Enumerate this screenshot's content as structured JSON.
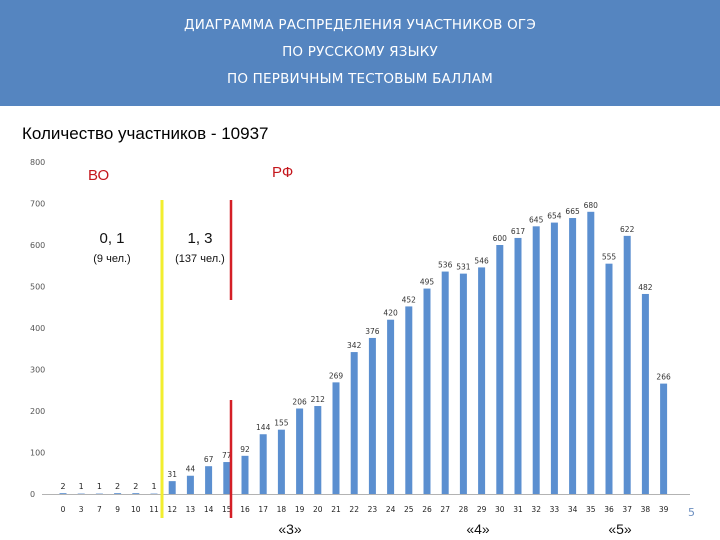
{
  "header": {
    "lines": [
      "ДИАГРАММА РАСПРЕДЕЛЕНИЯ УЧАСТНИКОВ ОГЭ",
      "ПО РУССКОМУ ЯЗЫКУ",
      "ПО ПЕРВИЧНЫМ ТЕСТОВЫМ БАЛЛАМ"
    ]
  },
  "participants_label": "Количество участников - 10937",
  "slide_number": "5",
  "annotations": {
    "vo_label": "ВО",
    "rf_label": "РФ",
    "vo_percent": "0, 1",
    "vo_people": "(9 чел.)",
    "rf_percent": "1, 3",
    "rf_people": "(137 чел.)"
  },
  "grade_labels": [
    "«3»",
    "«4»",
    "«5»"
  ],
  "colors": {
    "banner": "#5585c0",
    "bar": "#5b8fd0",
    "yellow_line": "#f2ee2e",
    "red_line": "#d41f26"
  },
  "chart_data": {
    "type": "bar",
    "x": [
      0,
      3,
      7,
      9,
      10,
      11,
      12,
      13,
      14,
      15,
      16,
      17,
      18,
      19,
      20,
      21,
      22,
      23,
      24,
      25,
      26,
      27,
      28,
      29,
      30,
      31,
      32,
      33,
      34,
      35,
      36,
      37,
      38,
      39
    ],
    "values": [
      2,
      1,
      1,
      2,
      2,
      1,
      31,
      44,
      67,
      77,
      92,
      144,
      155,
      206,
      212,
      269,
      342,
      376,
      420,
      452,
      495,
      536,
      531,
      546,
      600,
      617,
      645,
      654,
      665,
      680,
      555,
      622,
      482,
      266
    ],
    "value_labels": [
      "2",
      "1",
      "1",
      "2",
      "2",
      "1",
      "31",
      "44",
      "67",
      "77",
      "92",
      "144",
      "155",
      "206",
      "212",
      "269",
      "342",
      "376",
      "420",
      "452",
      "495",
      "536",
      "531",
      "546",
      "600",
      "617",
      "645",
      "654",
      "665",
      "680",
      "555",
      "622",
      "482",
      "266"
    ],
    "x_tick_labels": [
      "0",
      "3",
      "7",
      "9",
      "10",
      "11",
      "12",
      "13",
      "14",
      "15",
      "16",
      "17",
      "18",
      "19",
      "20",
      "21",
      "22",
      "23",
      "24",
      "25",
      "26",
      "27",
      "28",
      "29",
      "30",
      "31",
      "32",
      "33",
      "34",
      "35",
      "36",
      "37",
      "38",
      "39"
    ],
    "y_ticks": [
      0,
      100,
      200,
      300,
      400,
      500,
      600,
      700,
      800
    ],
    "ylim": [
      0,
      800
    ],
    "grid": false,
    "legend": null
  }
}
